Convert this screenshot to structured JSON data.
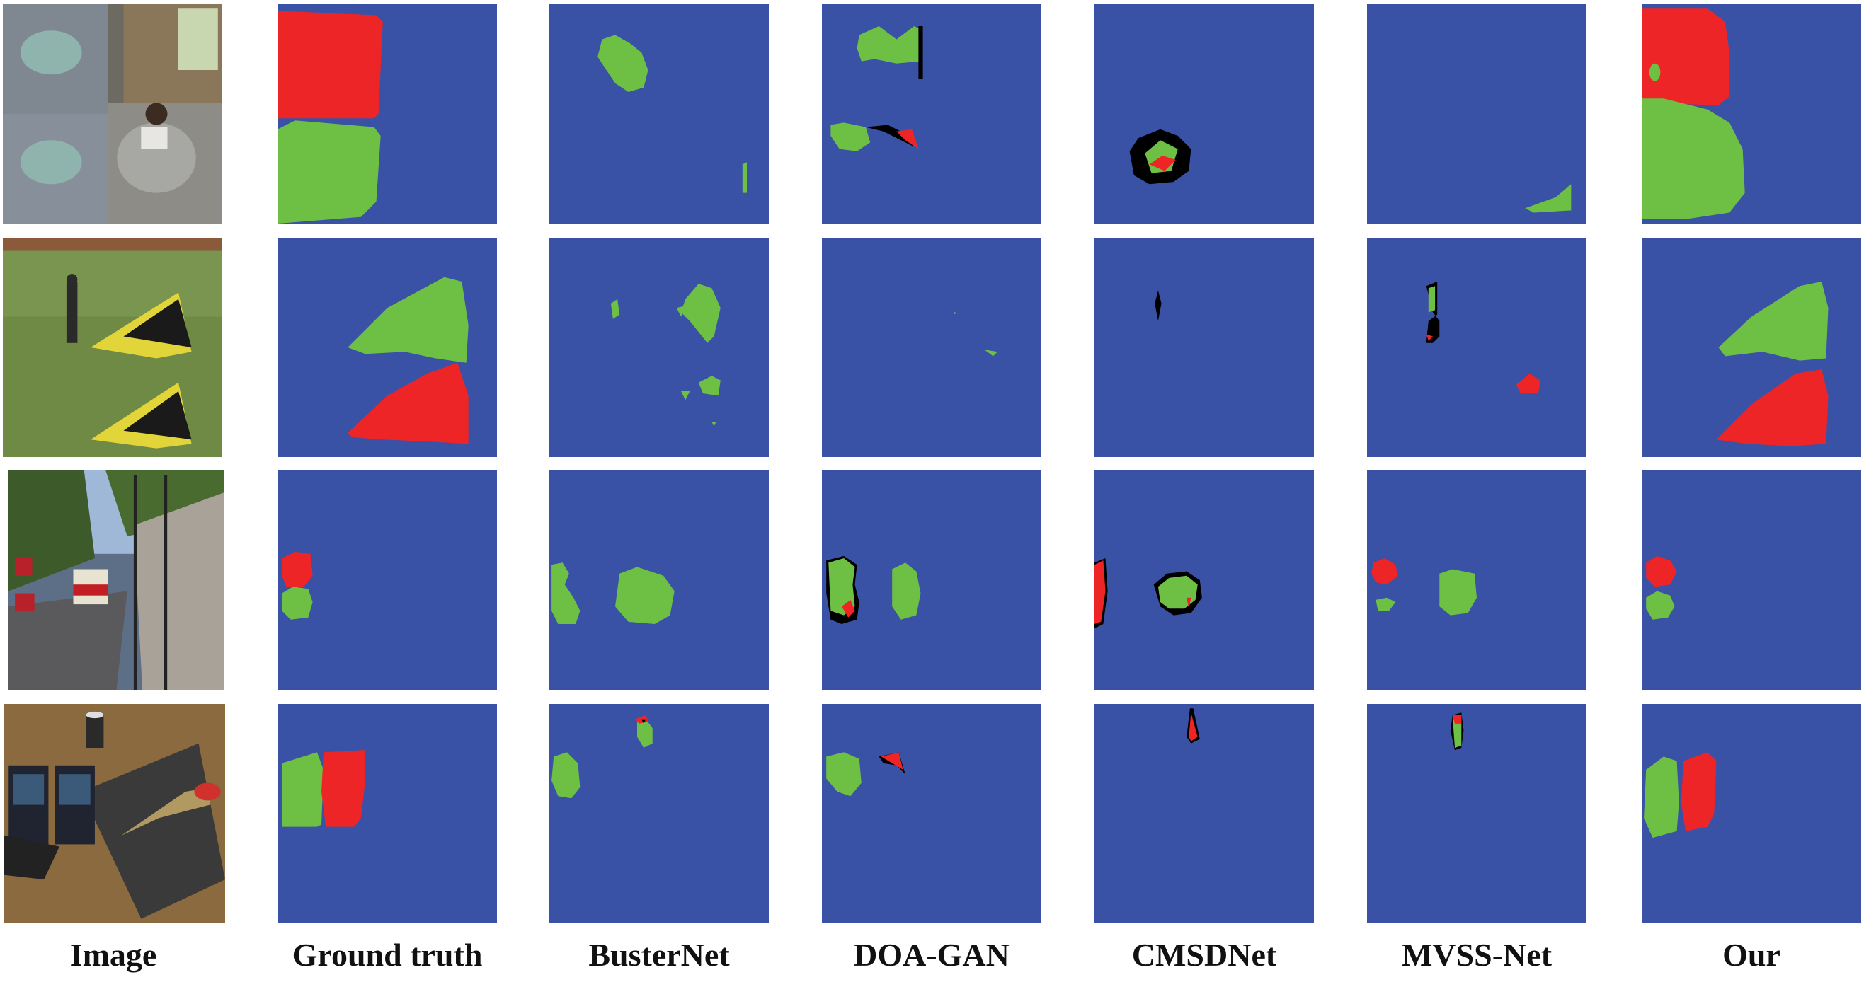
{
  "colors": {
    "background": "#3a52a5",
    "source": "#6ec045",
    "target": "#ee2527",
    "error": "#000000"
  },
  "columns": [
    "Image",
    "Ground truth",
    "BusterNet",
    "DOA-GAN",
    "CMSDNet",
    "MVSS-Net",
    "Our"
  ]
}
